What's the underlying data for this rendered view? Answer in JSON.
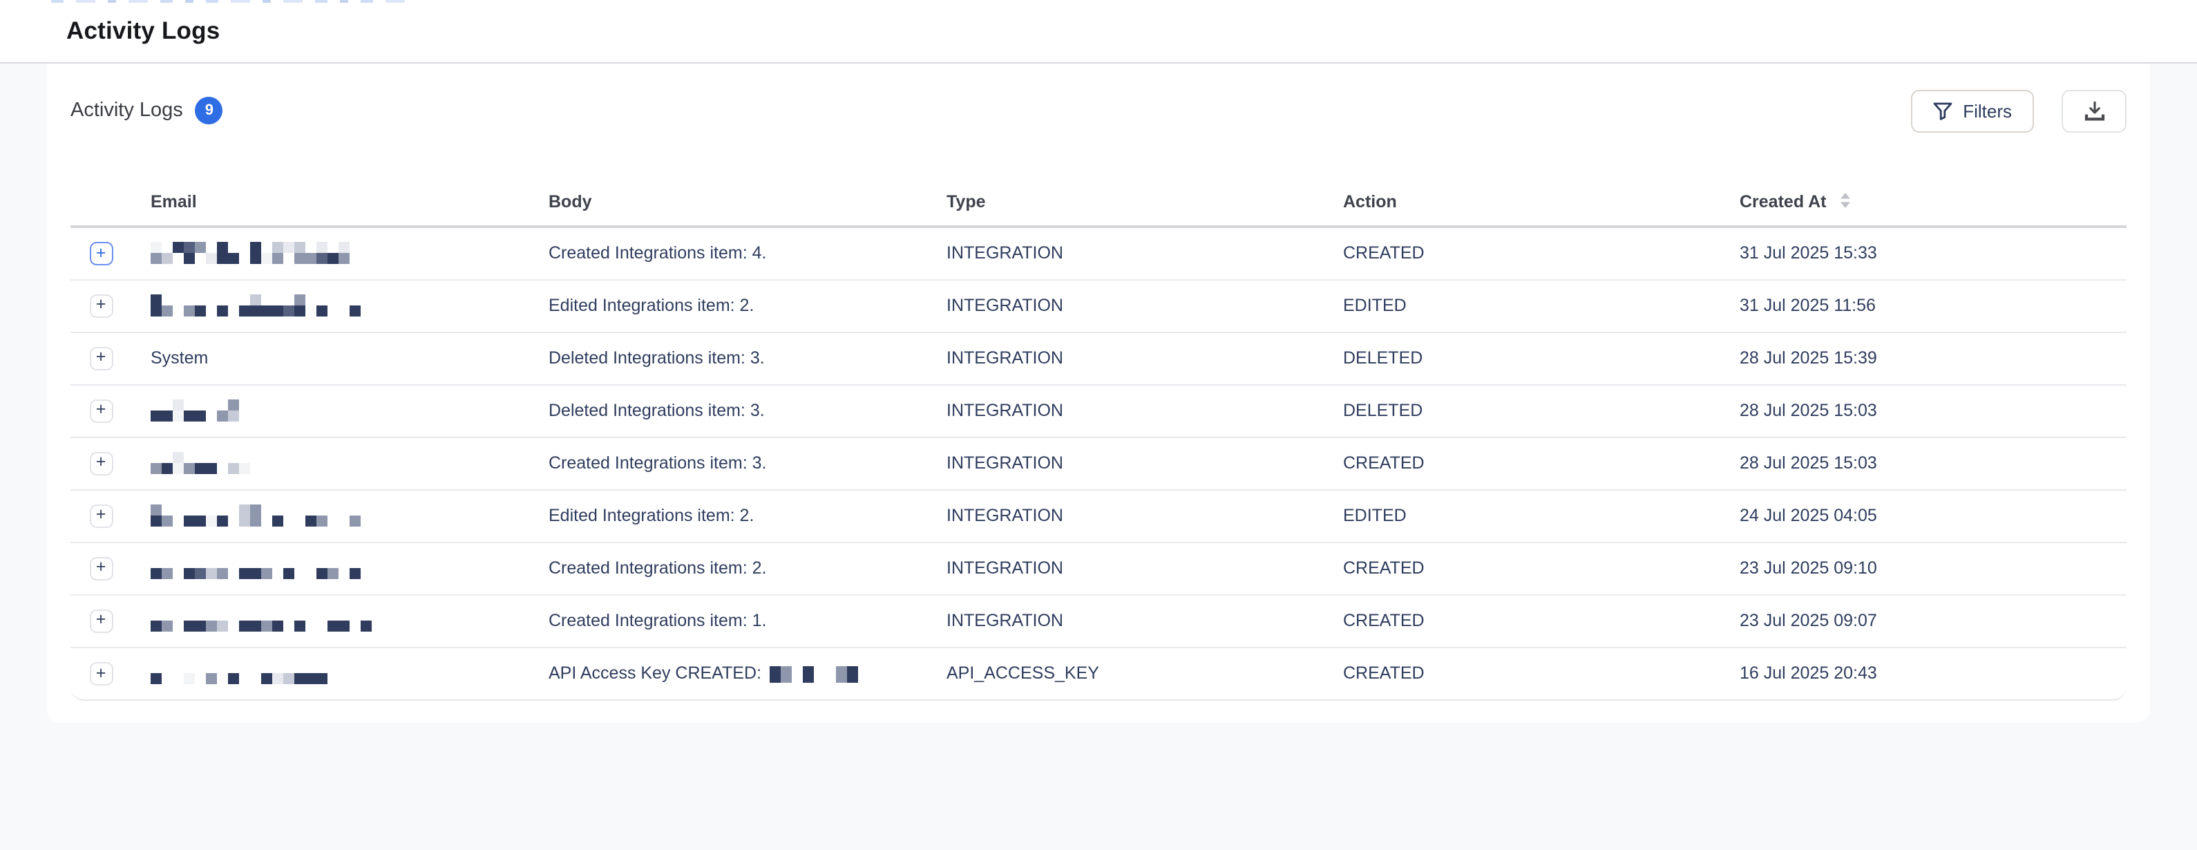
{
  "page": {
    "title": "Activity Logs"
  },
  "card": {
    "title": "Activity Logs",
    "count": "9",
    "filters_label": "Filters",
    "accent_color": "#2e6de4"
  },
  "icons": {
    "filters": "funnel-icon",
    "export": "download-icon",
    "sort": "sort-arrows-icon",
    "expand": "plus-icon"
  },
  "table": {
    "expand_glyph": "+",
    "columns": [
      {
        "key": "expand",
        "label": ""
      },
      {
        "key": "email",
        "label": "Email"
      },
      {
        "key": "body",
        "label": "Body"
      },
      {
        "key": "type",
        "label": "Type"
      },
      {
        "key": "action",
        "label": "Action"
      },
      {
        "key": "created_at",
        "label": "Created At",
        "sortable": true
      }
    ],
    "rows": [
      {
        "email_redacted": true,
        "body": "Created Integrations item: 4.",
        "type": "INTEGRATION",
        "action": "CREATED",
        "created_at": "31 Jul 2025 15:33"
      },
      {
        "email_redacted": true,
        "body": "Edited Integrations item: 2.",
        "type": "INTEGRATION",
        "action": "EDITED",
        "created_at": "31 Jul 2025 11:56"
      },
      {
        "email": "System",
        "body": "Deleted Integrations item: 3.",
        "type": "INTEGRATION",
        "action": "DELETED",
        "created_at": "28 Jul 2025 15:39"
      },
      {
        "email_redacted": true,
        "body": "Deleted Integrations item: 3.",
        "type": "INTEGRATION",
        "action": "DELETED",
        "created_at": "28 Jul 2025 15:03"
      },
      {
        "email_redacted": true,
        "body": "Created Integrations item: 3.",
        "type": "INTEGRATION",
        "action": "CREATED",
        "created_at": "28 Jul 2025 15:03"
      },
      {
        "email_redacted": true,
        "body": "Edited Integrations item: 2.",
        "type": "INTEGRATION",
        "action": "EDITED",
        "created_at": "24 Jul 2025 04:05"
      },
      {
        "email_redacted": true,
        "body": "Created Integrations item: 2.",
        "type": "INTEGRATION",
        "action": "CREATED",
        "created_at": "23 Jul 2025 09:10"
      },
      {
        "email_redacted": true,
        "body": "Created Integrations item: 1.",
        "type": "INTEGRATION",
        "action": "CREATED",
        "created_at": "23 Jul 2025 09:07"
      },
      {
        "email_redacted": true,
        "body": "API Access Key CREATED:",
        "body_redacted": true,
        "type": "API_ACCESS_KEY",
        "action": "CREATED",
        "created_at": "16 Jul 2025 20:43"
      }
    ]
  },
  "redaction": {
    "palette": {
      "n": "#2f3c5d",
      "s": "#566180",
      "g": "#8e97ac",
      "l": "#c6cbd7",
      "e": "#e8eaef",
      "f": "#f3f4f6",
      "w": ""
    },
    "emails": [
      [
        "fg",
        "wl",
        "nw",
        "sn",
        "gw",
        "we",
        "nn",
        "wn",
        ".",
        "nn",
        "wf",
        "lg",
        "ew",
        "lg",
        "wg",
        "es",
        "wn",
        "eg"
      ],
      [
        "nn",
        "wg",
        ".",
        "wg",
        "wn",
        ".",
        "wn",
        ".",
        "wn",
        "ln",
        "wn",
        "wn",
        "ws",
        "gn",
        ".",
        "wn",
        "..",
        "wn"
      ],
      null,
      [
        "wn",
        "wn",
        "ef",
        "wn",
        "wn",
        ".",
        "wg",
        "gl"
      ],
      [
        "wg",
        "wn",
        "ef",
        "wg",
        "wn",
        "wn",
        ".",
        "wl",
        "wf"
      ],
      [
        "gn",
        "wg",
        ".",
        "wn",
        "wn",
        "wf",
        "wn",
        ".",
        "ll",
        "gg",
        ".",
        "wn",
        "..",
        "wn",
        "wg",
        "..",
        "wg"
      ],
      [
        "wn",
        "wg",
        ".",
        "wn",
        "ws",
        "wl",
        "wg",
        ".",
        "wn",
        "wn",
        "wg",
        ".",
        "wn",
        "..",
        "wn",
        "wg",
        ".",
        "wn"
      ],
      [
        "wn",
        "wg",
        ".",
        "wn",
        "wn",
        "wg",
        "wl",
        ".",
        "wn",
        "wn",
        "wg",
        "wn",
        ".",
        "wn",
        "..",
        "wn",
        "wn",
        ".",
        "wn"
      ],
      [
        "wn",
        "..",
        "wf",
        ".",
        "wg",
        ".",
        "wn",
        "..",
        "wn",
        "we",
        "wl",
        "wn",
        "wn",
        "wn"
      ]
    ],
    "body_suffix": [
      "n",
      "g",
      ".",
      "n",
      "..",
      "g",
      "n"
    ]
  },
  "colors": {
    "text_navy": "#2f3c5d",
    "page_bg": "#f8f9fb",
    "row_divider": "#e9eaee",
    "header_divider": "#d4d5d9"
  }
}
